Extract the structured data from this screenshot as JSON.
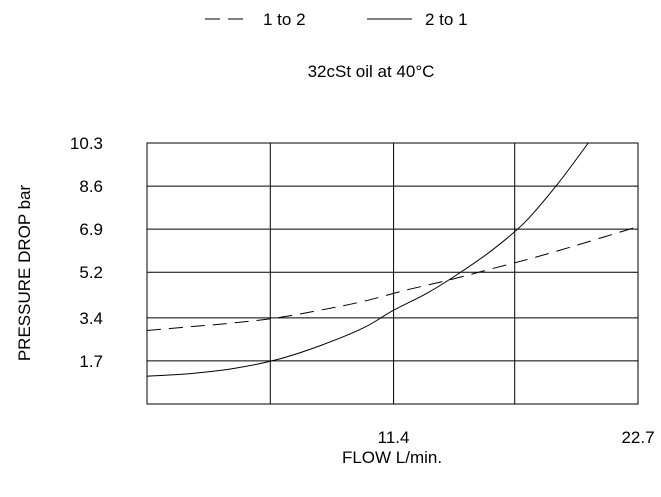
{
  "chart_data": {
    "type": "line",
    "subtitle": "32cSt oil at 40°C",
    "xlabel": "FLOW L/min.",
    "ylabel": "PRESSURE DROP bar",
    "xlim": [
      0,
      22.7
    ],
    "ylim": [
      0,
      10.3
    ],
    "x_ticks": [
      {
        "value": 11.4,
        "label": "11.4"
      },
      {
        "value": 22.7,
        "label": "22.7"
      }
    ],
    "y_ticks": [
      {
        "value": 1.7,
        "label": "1.7"
      },
      {
        "value": 3.4,
        "label": "3.4"
      },
      {
        "value": 5.2,
        "label": "5.2"
      },
      {
        "value": 6.9,
        "label": "6.9"
      },
      {
        "value": 8.6,
        "label": "8.6"
      },
      {
        "value": 10.3,
        "label": "10.3"
      }
    ],
    "x_grid": [
      5.7,
      11.4,
      17.0,
      22.7
    ],
    "y_grid": [
      1.7,
      3.4,
      5.2,
      6.9,
      8.6,
      10.3
    ],
    "grid": true,
    "legend_position": "top",
    "series": [
      {
        "name": "1 to 2",
        "style": "dashed",
        "x": [
          0,
          2,
          4,
          6,
          8,
          10,
          12,
          14,
          16,
          18,
          20,
          22.7
        ],
        "y": [
          2.9,
          3.05,
          3.2,
          3.4,
          3.7,
          4.05,
          4.5,
          4.9,
          5.35,
          5.8,
          6.3,
          7.0
        ]
      },
      {
        "name": "2 to 1",
        "style": "solid",
        "x": [
          0,
          2,
          4,
          6,
          8,
          10,
          11.4,
          13,
          14.5,
          16,
          17.5,
          19,
          20.4
        ],
        "y": [
          1.1,
          1.2,
          1.4,
          1.75,
          2.3,
          3.0,
          3.7,
          4.4,
          5.2,
          6.1,
          7.2,
          8.7,
          10.3
        ]
      }
    ]
  }
}
